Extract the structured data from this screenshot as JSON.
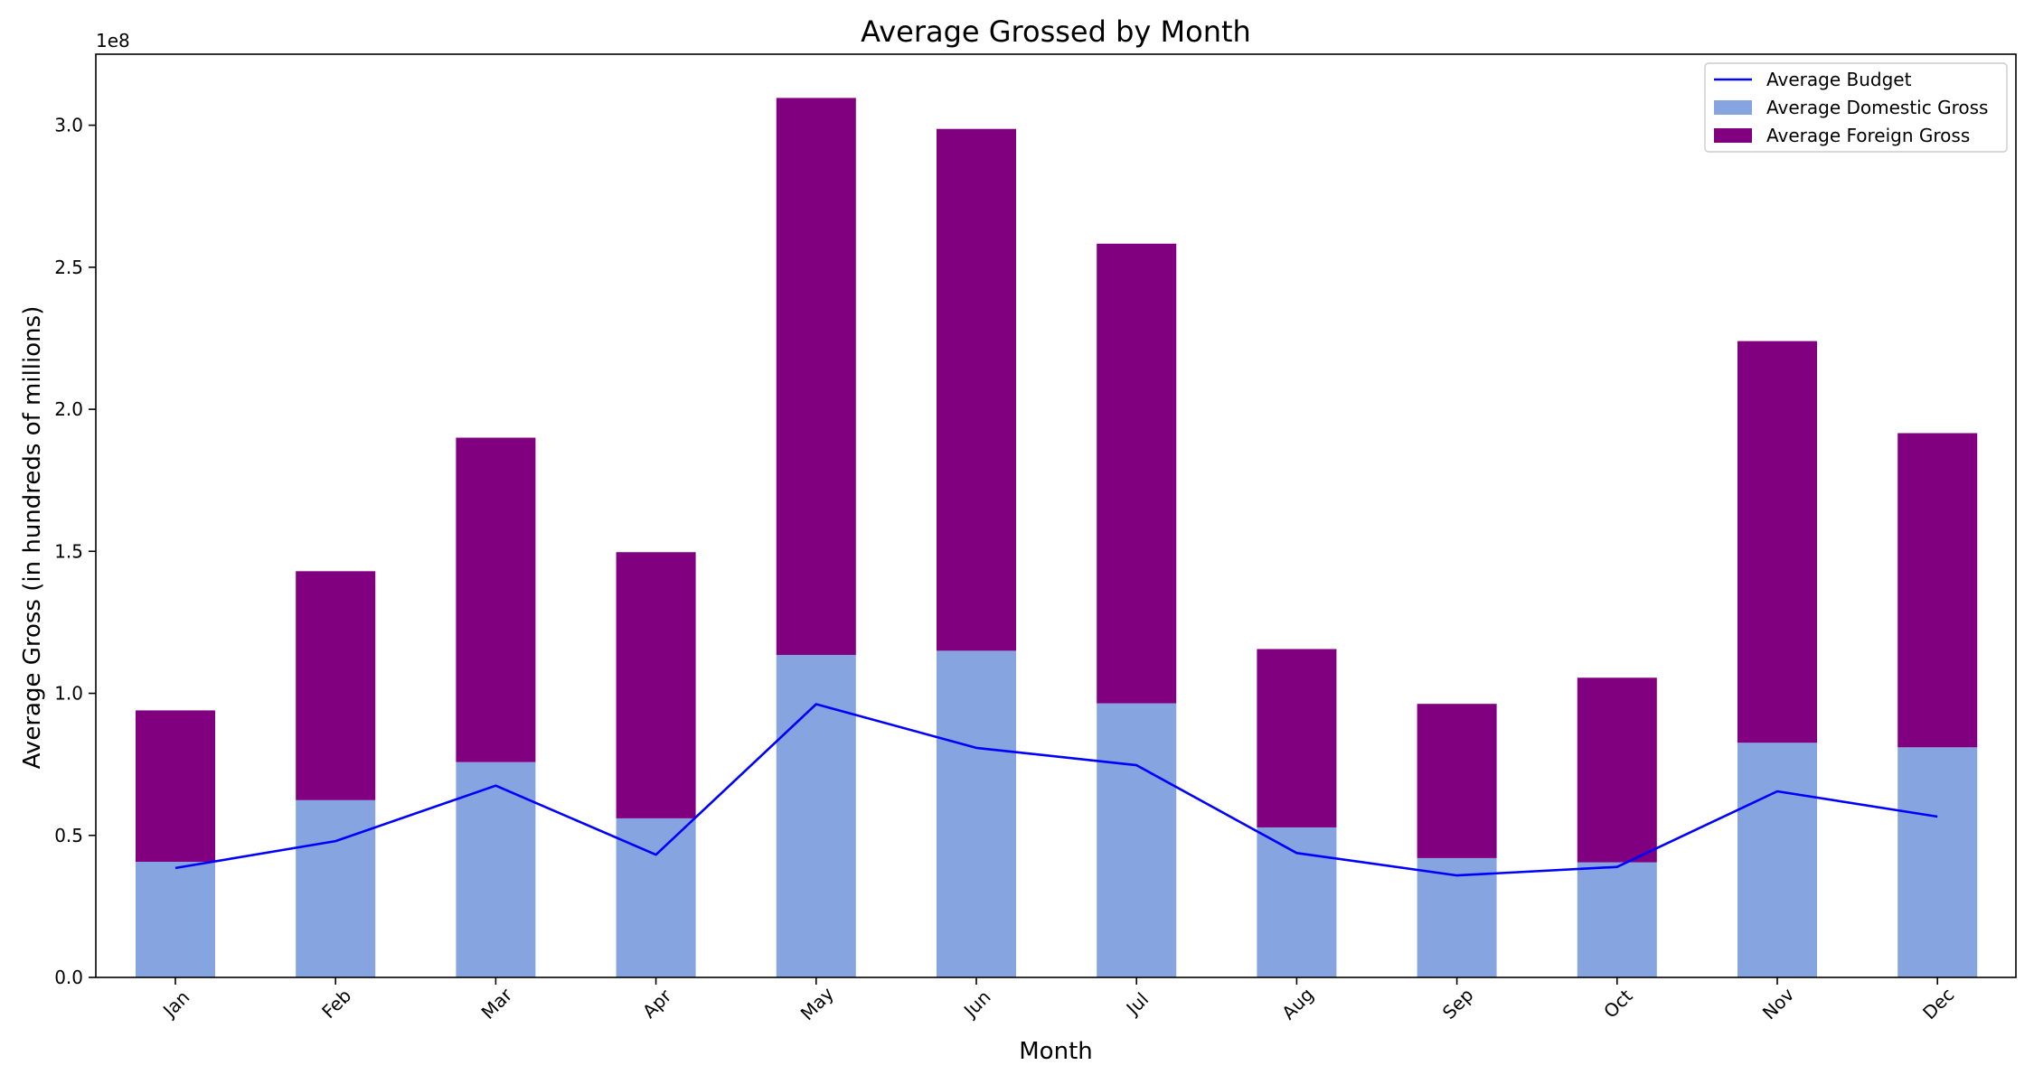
{
  "chart_data": {
    "type": "bar",
    "stacked": true,
    "title": "Average Grossed by Month",
    "xlabel": "Month",
    "ylabel": "Average Gross (in hundreds of millions)",
    "y_scale_label": "1e8",
    "ylim": [
      0,
      325000000
    ],
    "y_ticks": [
      0,
      50000000,
      100000000,
      150000000,
      200000000,
      250000000,
      300000000
    ],
    "y_tick_labels": [
      "0.0",
      "0.5",
      "1.0",
      "1.5",
      "2.0",
      "2.5",
      "3.0"
    ],
    "categories": [
      "Jan",
      "Feb",
      "Mar",
      "Apr",
      "May",
      "Jun",
      "Jul",
      "Aug",
      "Sep",
      "Oct",
      "Nov",
      "Dec"
    ],
    "grid": false,
    "legend_position": "top-right",
    "bar_series": [
      {
        "name": "Average Domestic Gross",
        "color": "#86a4e0",
        "values": [
          40700000,
          62400000,
          75800000,
          56000000,
          113500000,
          115000000,
          96500000,
          52800000,
          42000000,
          40500000,
          82600000,
          81000000
        ]
      },
      {
        "name": "Average Foreign Gross",
        "color": "#800080",
        "values": [
          53300000,
          80600000,
          114200000,
          93700000,
          196100000,
          183700000,
          161800000,
          62800000,
          54300000,
          65000000,
          141400000,
          110600000
        ]
      }
    ],
    "line_series": [
      {
        "name": "Average Budget",
        "color": "#0000ff",
        "values": [
          38500000,
          48000000,
          67500000,
          43200000,
          96200000,
          80800000,
          74700000,
          43800000,
          35900000,
          38900000,
          65500000,
          56600000
        ]
      }
    ]
  }
}
